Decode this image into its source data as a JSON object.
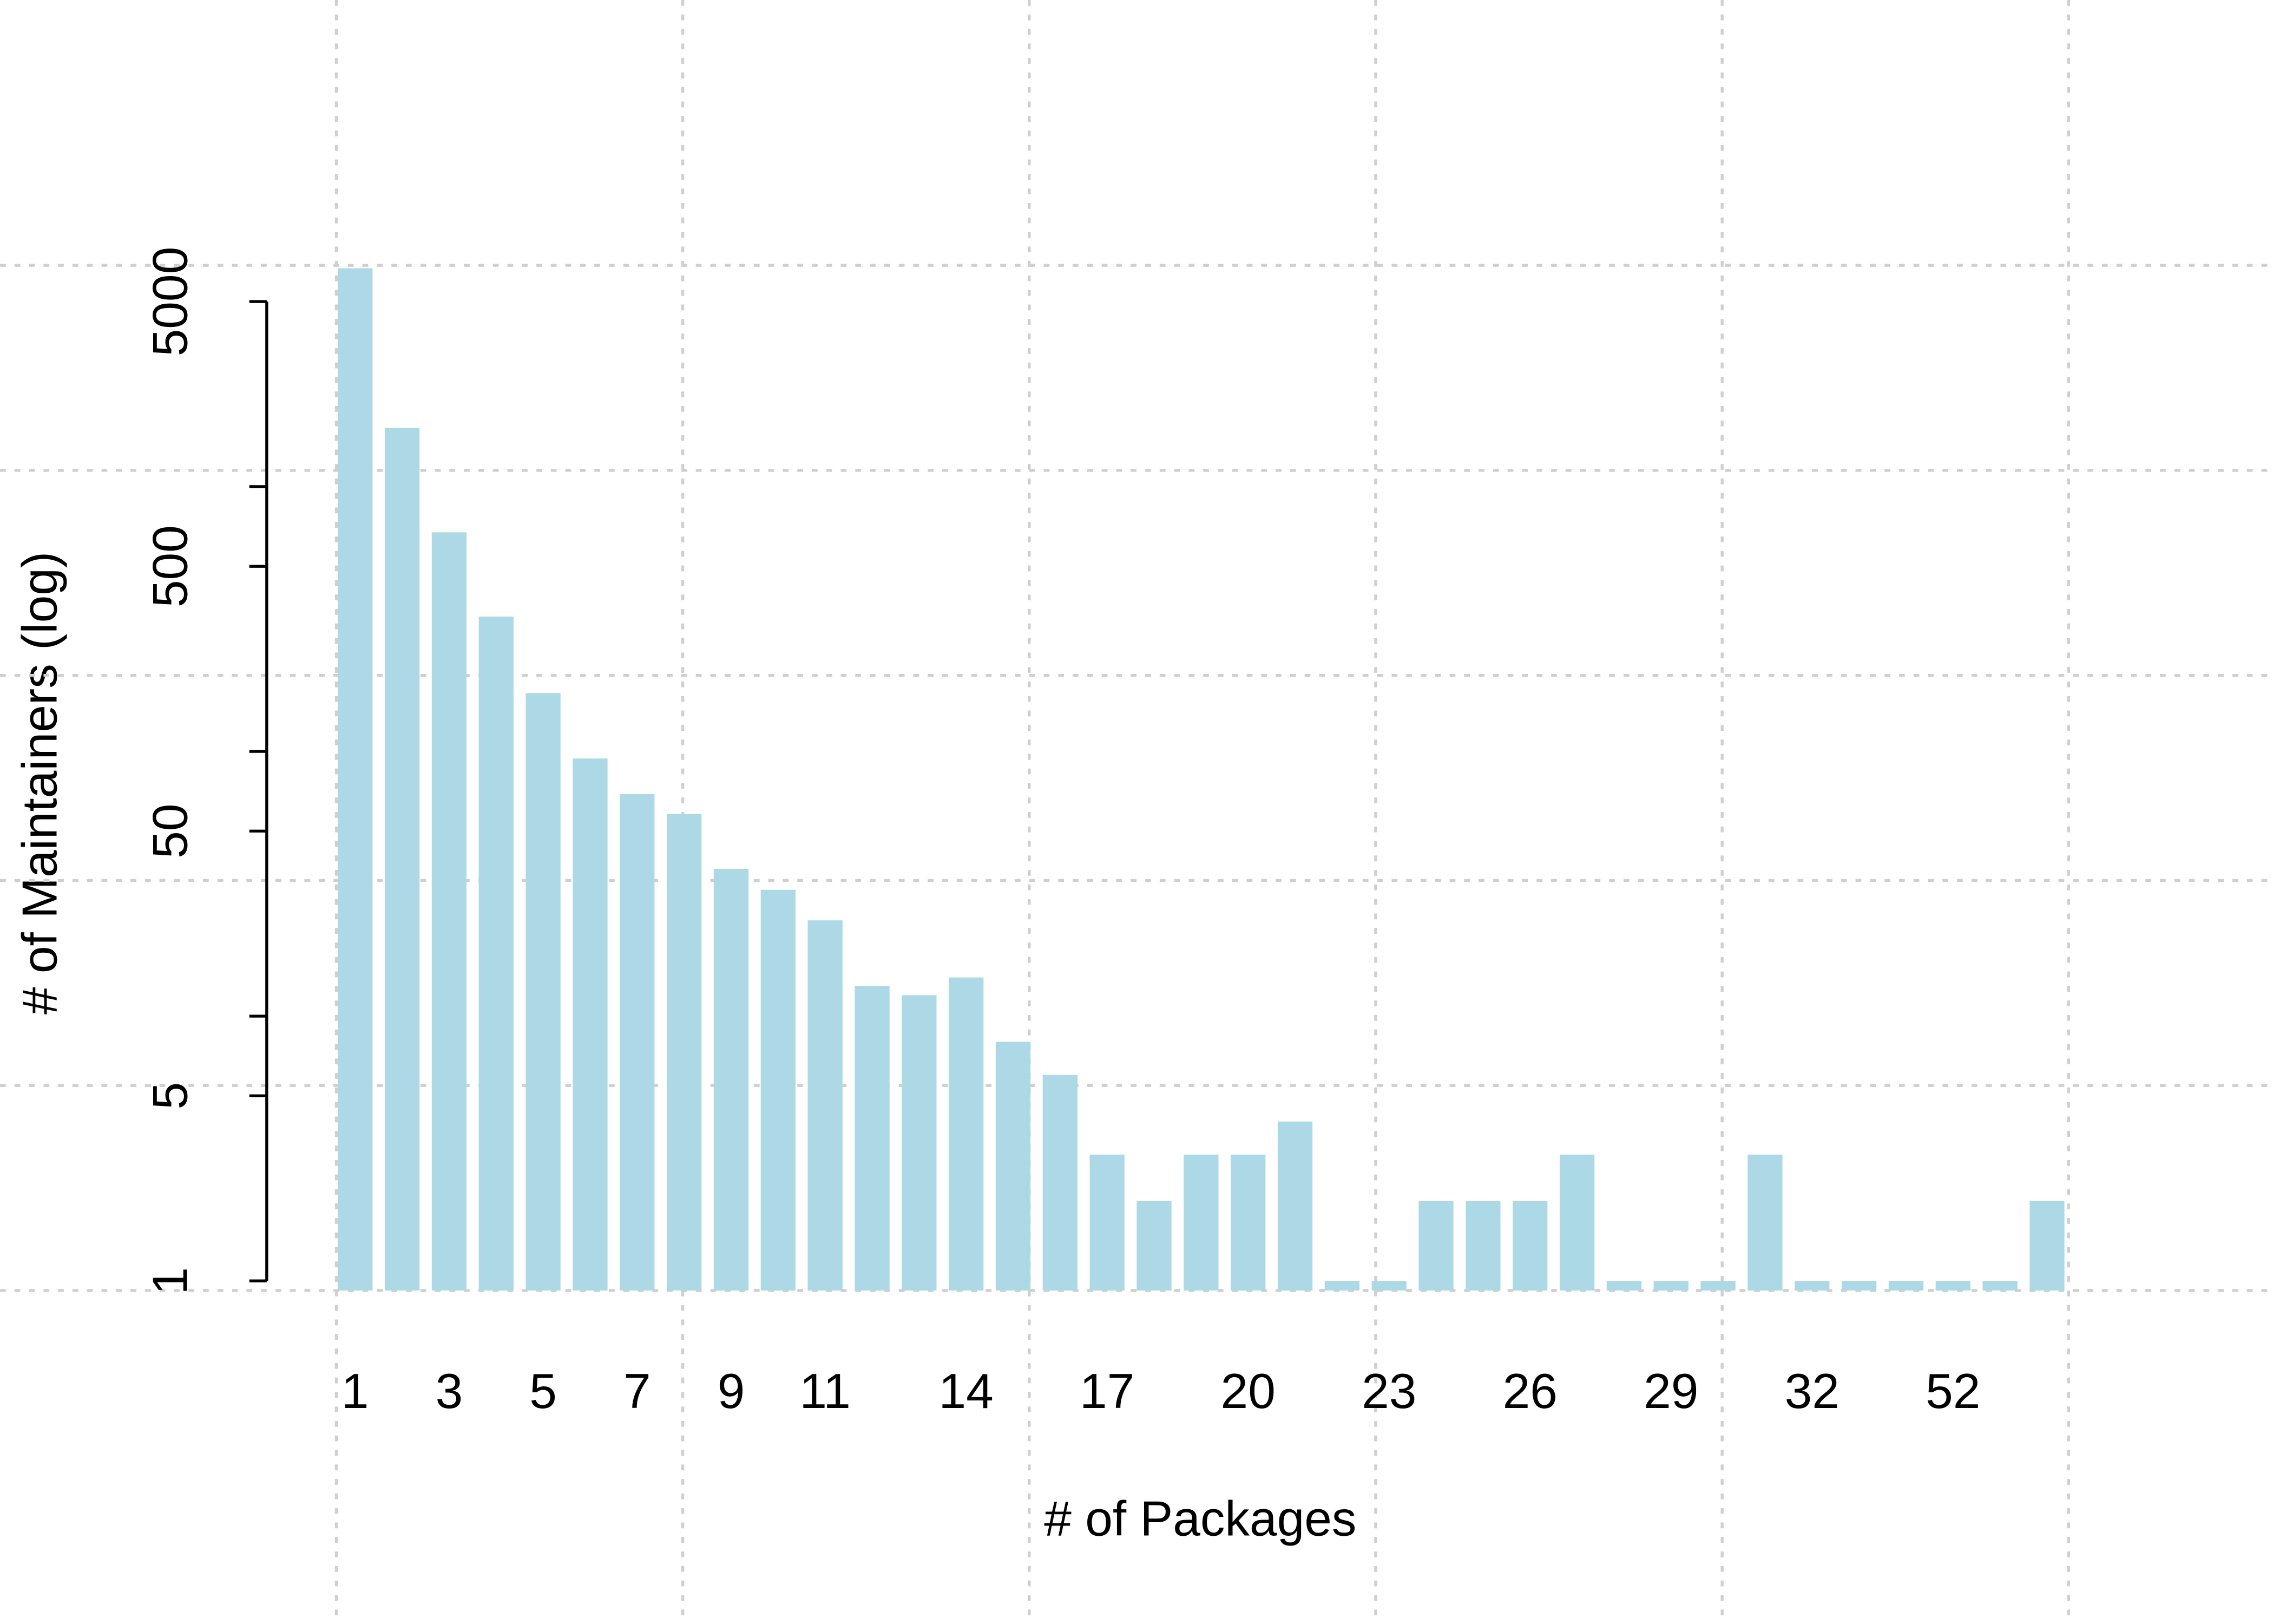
{
  "chart_data": {
    "type": "bar",
    "x_label": "# of Packages",
    "y_label": "# of Maintainers (log)",
    "categories": [
      "1",
      null,
      "3",
      null,
      "5",
      null,
      "7",
      null,
      "9",
      null,
      "11",
      null,
      null,
      "14",
      null,
      null,
      "17",
      null,
      null,
      "20",
      null,
      null,
      "23",
      null,
      null,
      "26",
      null,
      null,
      "29",
      null,
      null,
      "32",
      null,
      null,
      "52",
      null,
      null
    ],
    "values": [
      6680,
      1667,
      672,
      323,
      166,
      94,
      69,
      58,
      36,
      30,
      23,
      13,
      12,
      14,
      8,
      6,
      3,
      2,
      3,
      3,
      4,
      1,
      1,
      2,
      2,
      2,
      3,
      1,
      1,
      1,
      3,
      1,
      1,
      1,
      1,
      1,
      2
    ],
    "color": "#add8e6",
    "log_y": true,
    "ylim": [
      0.92,
      6850
    ],
    "yticks": [
      1,
      5,
      50,
      500,
      5000
    ],
    "minor_yticks": [
      10,
      100,
      1000
    ],
    "grid": true
  }
}
